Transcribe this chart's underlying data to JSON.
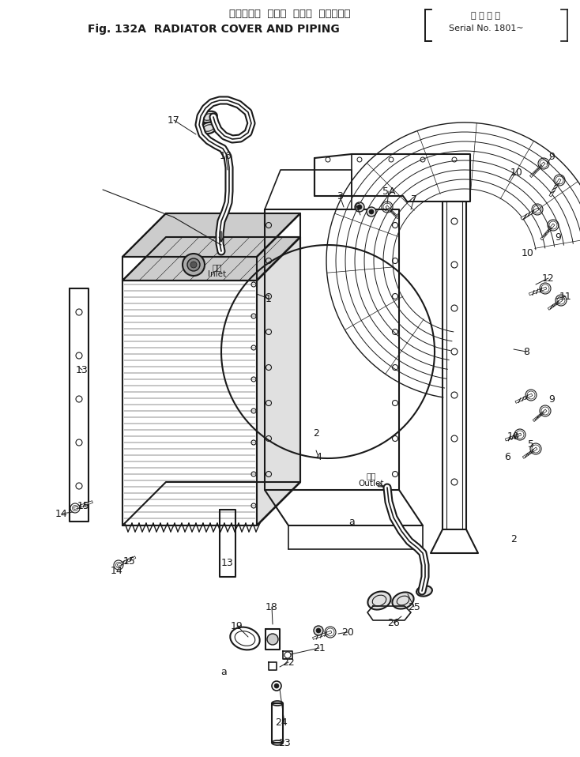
{
  "title_jp": "ラジエータ  カバー  および  パイピング",
  "title_en": "Fig. 132A  RADIATOR COVER AND PIPING",
  "serial_jp": "適 用 号 機",
  "serial_en": "Serial No. 1801~",
  "bg_color": "#ffffff",
  "lc": "#1a1a1a",
  "fig_w": 7.34,
  "fig_h": 9.58,
  "dpi": 100
}
